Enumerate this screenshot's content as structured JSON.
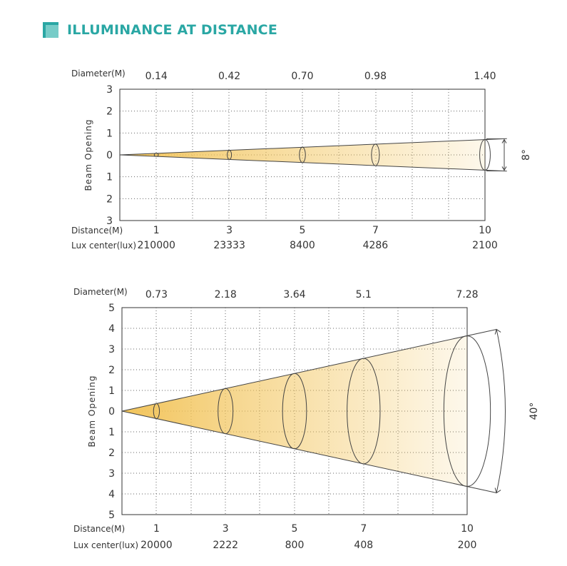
{
  "page": {
    "title": "ILLUMINANCE AT DISTANCE",
    "accent_color": "#2aa7a4"
  },
  "chart_data": [
    {
      "type": "beam-diagram",
      "beam_angle_deg": 8,
      "beam_angle_label": "8°",
      "ylabel": "Beam Opening",
      "diameter_label": "Diameter(M)",
      "distance_label": "Distance(M)",
      "lux_label": "Lux center(lux)",
      "y_ticks": [
        "3",
        "2",
        "1",
        "0",
        "1",
        "2",
        "3"
      ],
      "ylim": [
        -3,
        3
      ],
      "xlim": [
        0,
        10
      ],
      "distances": [
        1,
        3,
        5,
        7,
        10
      ],
      "distance_labels": [
        "1",
        "3",
        "5",
        "7",
        "10"
      ],
      "diameters": [
        "0.14",
        "0.42",
        "0.70",
        "0.98",
        "1.40"
      ],
      "lux_center": [
        "210000",
        "23333",
        "8400",
        "4286",
        "2100"
      ],
      "beam_color": "#f2c45a"
    },
    {
      "type": "beam-diagram",
      "beam_angle_deg": 40,
      "beam_angle_label": "40°",
      "ylabel": "Beam Opening",
      "diameter_label": "Diameter(M)",
      "distance_label": "Distance(M)",
      "lux_label": "Lux center(lux)",
      "y_ticks": [
        "5",
        "4",
        "3",
        "2",
        "1",
        "0",
        "1",
        "2",
        "3",
        "4",
        "5"
      ],
      "ylim": [
        -5,
        5
      ],
      "xlim": [
        0,
        10
      ],
      "distances": [
        1,
        3,
        5,
        7,
        10
      ],
      "distance_labels": [
        "1",
        "3",
        "5",
        "7",
        "10"
      ],
      "diameters": [
        "0.73",
        "2.18",
        "3.64",
        "5.1",
        "7.28"
      ],
      "lux_center": [
        "20000",
        "2222",
        "800",
        "408",
        "200"
      ],
      "beam_color": "#f2c45a"
    }
  ]
}
